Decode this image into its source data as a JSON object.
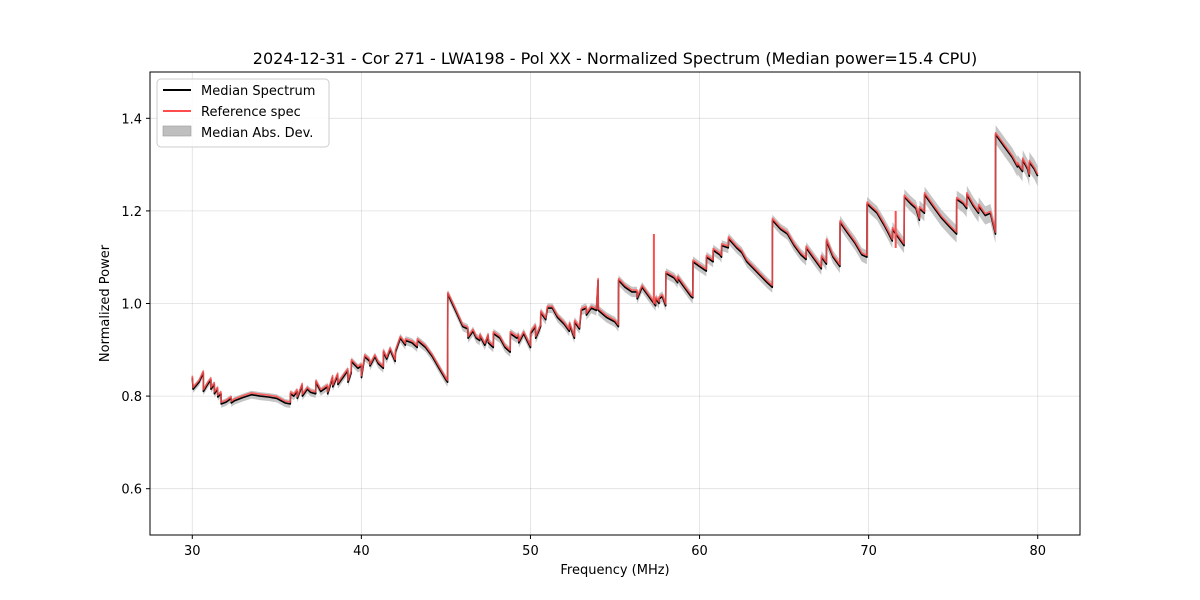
{
  "chart_data": {
    "type": "line",
    "title": "2024-12-31 - Cor 271 - LWA198 - Pol XX - Normalized Spectrum (Median power=15.4 CPU)",
    "xlabel": "Frequency (MHz)",
    "ylabel": "Normalized Power",
    "xlim": [
      27.5,
      82.5
    ],
    "ylim": [
      0.5,
      1.5
    ],
    "xticks": [
      30,
      40,
      50,
      60,
      70,
      80
    ],
    "xtick_labels": [
      "30",
      "40",
      "50",
      "60",
      "70",
      "80"
    ],
    "yticks": [
      0.6,
      0.8,
      1.0,
      1.2,
      1.4
    ],
    "ytick_labels": [
      "0.6",
      "0.8",
      "1.0",
      "1.2",
      "1.4"
    ],
    "grid": true,
    "legend_position": "top-left",
    "legend": [
      "Median Spectrum",
      "Reference spec",
      "Median Abs. Dev."
    ],
    "colors": {
      "median": "#000000",
      "reference": "#ff4d4d",
      "mad": "#bfbfbf"
    },
    "mad_halfwidth": [
      [
        30,
        0.008
      ],
      [
        45,
        0.01
      ],
      [
        65,
        0.012
      ],
      [
        77.5,
        0.02
      ],
      [
        80,
        0.022
      ]
    ],
    "median_spectrum": [
      [
        30.0,
        0.84
      ],
      [
        30.05,
        0.815
      ],
      [
        30.4,
        0.83
      ],
      [
        30.65,
        0.85
      ],
      [
        30.66,
        0.81
      ],
      [
        30.9,
        0.825
      ],
      [
        31.1,
        0.835
      ],
      [
        31.11,
        0.815
      ],
      [
        31.3,
        0.825
      ],
      [
        31.31,
        0.805
      ],
      [
        31.5,
        0.815
      ],
      [
        31.51,
        0.798
      ],
      [
        31.7,
        0.805
      ],
      [
        31.71,
        0.783
      ],
      [
        32.0,
        0.787
      ],
      [
        32.3,
        0.795
      ],
      [
        32.31,
        0.785
      ],
      [
        32.5,
        0.79
      ],
      [
        33.0,
        0.797
      ],
      [
        33.5,
        0.803
      ],
      [
        34.0,
        0.8
      ],
      [
        34.5,
        0.798
      ],
      [
        35.0,
        0.795
      ],
      [
        35.5,
        0.785
      ],
      [
        35.8,
        0.783
      ],
      [
        35.81,
        0.805
      ],
      [
        36.0,
        0.8
      ],
      [
        36.2,
        0.81
      ],
      [
        36.21,
        0.795
      ],
      [
        36.5,
        0.823
      ],
      [
        36.51,
        0.8
      ],
      [
        36.8,
        0.815
      ],
      [
        37.0,
        0.808
      ],
      [
        37.3,
        0.805
      ],
      [
        37.31,
        0.83
      ],
      [
        37.6,
        0.81
      ],
      [
        38.0,
        0.82
      ],
      [
        38.01,
        0.805
      ],
      [
        38.3,
        0.84
      ],
      [
        38.31,
        0.82
      ],
      [
        38.6,
        0.845
      ],
      [
        38.61,
        0.825
      ],
      [
        38.9,
        0.84
      ],
      [
        39.2,
        0.855
      ],
      [
        39.21,
        0.83
      ],
      [
        39.4,
        0.85
      ],
      [
        39.41,
        0.875
      ],
      [
        39.8,
        0.86
      ],
      [
        40.0,
        0.865
      ],
      [
        40.01,
        0.84
      ],
      [
        40.2,
        0.885
      ],
      [
        40.5,
        0.875
      ],
      [
        40.51,
        0.865
      ],
      [
        40.8,
        0.885
      ],
      [
        41.0,
        0.87
      ],
      [
        41.3,
        0.86
      ],
      [
        41.31,
        0.895
      ],
      [
        41.5,
        0.88
      ],
      [
        41.7,
        0.9
      ],
      [
        42.0,
        0.875
      ],
      [
        42.01,
        0.895
      ],
      [
        42.3,
        0.925
      ],
      [
        42.6,
        0.91
      ],
      [
        42.61,
        0.92
      ],
      [
        43.0,
        0.915
      ],
      [
        43.3,
        0.905
      ],
      [
        43.31,
        0.92
      ],
      [
        43.8,
        0.905
      ],
      [
        44.2,
        0.885
      ],
      [
        44.6,
        0.86
      ],
      [
        45.0,
        0.835
      ],
      [
        45.1,
        0.83
      ],
      [
        45.11,
        1.02
      ],
      [
        45.5,
        0.99
      ],
      [
        46.0,
        0.95
      ],
      [
        46.3,
        0.945
      ],
      [
        46.31,
        0.925
      ],
      [
        46.6,
        0.94
      ],
      [
        46.8,
        0.925
      ],
      [
        47.0,
        0.92
      ],
      [
        47.01,
        0.93
      ],
      [
        47.3,
        0.91
      ],
      [
        47.5,
        0.93
      ],
      [
        47.51,
        0.915
      ],
      [
        47.8,
        0.905
      ],
      [
        47.81,
        0.935
      ],
      [
        48.2,
        0.925
      ],
      [
        48.5,
        0.905
      ],
      [
        48.8,
        0.895
      ],
      [
        48.81,
        0.935
      ],
      [
        49.2,
        0.925
      ],
      [
        49.3,
        0.93
      ],
      [
        49.31,
        0.915
      ],
      [
        49.6,
        0.935
      ],
      [
        50.0,
        0.905
      ],
      [
        50.01,
        0.935
      ],
      [
        50.3,
        0.95
      ],
      [
        50.31,
        0.925
      ],
      [
        50.6,
        0.95
      ],
      [
        50.61,
        0.98
      ],
      [
        50.9,
        0.965
      ],
      [
        51.0,
        0.99
      ],
      [
        51.3,
        0.99
      ],
      [
        51.6,
        0.97
      ],
      [
        52.0,
        0.955
      ],
      [
        52.3,
        0.94
      ],
      [
        52.31,
        0.955
      ],
      [
        52.5,
        0.935
      ],
      [
        52.6,
        0.925
      ],
      [
        52.61,
        0.96
      ],
      [
        52.9,
        0.945
      ],
      [
        53.0,
        0.985
      ],
      [
        53.3,
        0.99
      ],
      [
        53.31,
        0.975
      ],
      [
        53.6,
        0.99
      ],
      [
        53.9,
        0.985
      ],
      [
        54.0,
        1.05
      ],
      [
        54.01,
        0.985
      ],
      [
        54.5,
        0.97
      ],
      [
        55.0,
        0.96
      ],
      [
        55.2,
        0.95
      ],
      [
        55.21,
        1.05
      ],
      [
        55.6,
        1.035
      ],
      [
        56.0,
        1.025
      ],
      [
        56.3,
        1.025
      ],
      [
        56.31,
        1.01
      ],
      [
        56.6,
        1.035
      ],
      [
        56.9,
        1.02
      ],
      [
        57.2,
        1.005
      ],
      [
        57.4,
        0.995
      ],
      [
        57.41,
        1.01
      ],
      [
        57.6,
        1.0
      ],
      [
        57.61,
        1.01
      ],
      [
        57.8,
        1.015
      ],
      [
        58.0,
        0.995
      ],
      [
        58.01,
        1.065
      ],
      [
        58.5,
        1.055
      ],
      [
        58.7,
        1.045
      ],
      [
        58.71,
        1.055
      ],
      [
        59.0,
        1.04
      ],
      [
        59.2,
        1.03
      ],
      [
        59.5,
        1.015
      ],
      [
        59.6,
        1.012
      ],
      [
        59.61,
        1.09
      ],
      [
        60.0,
        1.08
      ],
      [
        60.4,
        1.07
      ],
      [
        60.41,
        1.1
      ],
      [
        60.8,
        1.09
      ],
      [
        60.81,
        1.115
      ],
      [
        61.2,
        1.105
      ],
      [
        61.3,
        1.1
      ],
      [
        61.31,
        1.125
      ],
      [
        61.7,
        1.12
      ],
      [
        61.71,
        1.14
      ],
      [
        62.2,
        1.12
      ],
      [
        62.5,
        1.11
      ],
      [
        62.8,
        1.09
      ],
      [
        63.2,
        1.075
      ],
      [
        63.6,
        1.06
      ],
      [
        64.0,
        1.045
      ],
      [
        64.3,
        1.035
      ],
      [
        64.31,
        1.18
      ],
      [
        64.8,
        1.16
      ],
      [
        65.2,
        1.15
      ],
      [
        65.6,
        1.125
      ],
      [
        66.0,
        1.105
      ],
      [
        66.3,
        1.095
      ],
      [
        66.31,
        1.12
      ],
      [
        66.7,
        1.1
      ],
      [
        67.0,
        1.085
      ],
      [
        67.2,
        1.075
      ],
      [
        67.21,
        1.1
      ],
      [
        67.5,
        1.085
      ],
      [
        67.51,
        1.135
      ],
      [
        67.9,
        1.1
      ],
      [
        68.3,
        1.08
      ],
      [
        68.31,
        1.175
      ],
      [
        68.8,
        1.15
      ],
      [
        69.2,
        1.13
      ],
      [
        69.6,
        1.105
      ],
      [
        69.9,
        1.1
      ],
      [
        69.91,
        1.215
      ],
      [
        70.2,
        1.205
      ],
      [
        70.5,
        1.195
      ],
      [
        70.9,
        1.17
      ],
      [
        71.2,
        1.15
      ],
      [
        71.4,
        1.135
      ],
      [
        71.41,
        1.16
      ],
      [
        71.8,
        1.14
      ],
      [
        72.1,
        1.125
      ],
      [
        72.11,
        1.23
      ],
      [
        72.5,
        1.215
      ],
      [
        72.8,
        1.205
      ],
      [
        73.0,
        1.18
      ],
      [
        73.01,
        1.205
      ],
      [
        73.3,
        1.195
      ],
      [
        73.31,
        1.235
      ],
      [
        73.8,
        1.21
      ],
      [
        74.3,
        1.185
      ],
      [
        74.8,
        1.165
      ],
      [
        75.2,
        1.15
      ],
      [
        75.21,
        1.225
      ],
      [
        75.6,
        1.215
      ],
      [
        75.8,
        1.205
      ],
      [
        75.81,
        1.235
      ],
      [
        76.2,
        1.21
      ],
      [
        76.5,
        1.195
      ],
      [
        76.51,
        1.21
      ],
      [
        76.9,
        1.19
      ],
      [
        77.2,
        1.195
      ],
      [
        77.5,
        1.15
      ],
      [
        77.51,
        1.365
      ],
      [
        78.0,
        1.34
      ],
      [
        78.5,
        1.315
      ],
      [
        78.8,
        1.295
      ],
      [
        78.81,
        1.3
      ],
      [
        79.1,
        1.285
      ],
      [
        79.11,
        1.31
      ],
      [
        79.4,
        1.29
      ],
      [
        79.5,
        1.275
      ],
      [
        79.51,
        1.305
      ],
      [
        79.8,
        1.29
      ],
      [
        80.0,
        1.275
      ]
    ],
    "reference_spikes": [
      [
        57.3,
        1.0,
        1.15
      ],
      [
        71.6,
        1.12,
        1.2
      ]
    ]
  }
}
